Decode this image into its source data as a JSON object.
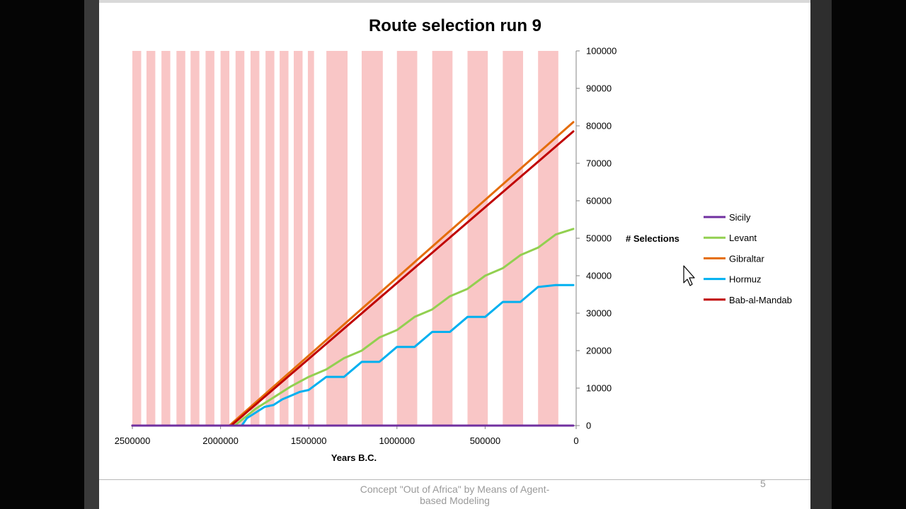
{
  "footer": {
    "text": "Concept \"Out of Africa\" by Means of Agent-\nbased Modeling",
    "slide_number": "5"
  },
  "colors": {
    "background": "#ffffff",
    "stripe": "#f9c6c6",
    "sicily": "#7030a0",
    "levant": "#92d050",
    "gibraltar": "#e46c0a",
    "hormuz": "#00b0f0",
    "bab_al_mandab": "#c00000"
  },
  "cursor": {
    "icon": "mouse-pointer-icon"
  },
  "chart_data": {
    "type": "line",
    "title": "Route selection run 9",
    "xlabel": "Years B.C.",
    "ylabel": "# Selections",
    "xlim": [
      2500000,
      0
    ],
    "x_reversed": true,
    "ylim": [
      0,
      100000
    ],
    "y_axis_side": "right",
    "x_ticks": [
      2500000,
      2000000,
      1500000,
      1000000,
      500000,
      0
    ],
    "y_ticks": [
      0,
      10000,
      20000,
      30000,
      40000,
      50000,
      60000,
      70000,
      80000,
      90000,
      100000
    ],
    "legend_position": "right",
    "grid": false,
    "background_bands": [
      [
        2500000,
        2450000
      ],
      [
        2420000,
        2370000
      ],
      [
        2335000,
        2285000
      ],
      [
        2250000,
        2200000
      ],
      [
        2170000,
        2120000
      ],
      [
        2085000,
        2035000
      ],
      [
        2000000,
        1950000
      ],
      [
        1915000,
        1865000
      ],
      [
        1830000,
        1780000
      ],
      [
        1745000,
        1695000
      ],
      [
        1665000,
        1615000
      ],
      [
        1585000,
        1535000
      ],
      [
        1505000,
        1470000
      ],
      [
        1400000,
        1280000
      ],
      [
        1200000,
        1080000
      ],
      [
        1000000,
        885000
      ],
      [
        800000,
        685000
      ],
      [
        600000,
        485000
      ],
      [
        400000,
        285000
      ],
      [
        200000,
        85000
      ]
    ],
    "series": [
      {
        "name": "Sicily",
        "color": "#7030a0",
        "x": [
          2500000,
          0
        ],
        "y": [
          0,
          0
        ]
      },
      {
        "name": "Levant",
        "color": "#92d050",
        "x": [
          2500000,
          1920000,
          1800000,
          1700000,
          1600000,
          1500000,
          1400000,
          1300000,
          1200000,
          1100000,
          1000000,
          900000,
          800000,
          700000,
          600000,
          500000,
          400000,
          300000,
          200000,
          100000,
          0
        ],
        "y": [
          0,
          0,
          4500,
          7500,
          10500,
          13000,
          15000,
          18000,
          20000,
          23500,
          25500,
          29000,
          31000,
          34500,
          36500,
          40000,
          42000,
          45500,
          47500,
          51000,
          52500
        ]
      },
      {
        "name": "Gibraltar",
        "color": "#e46c0a",
        "x": [
          2500000,
          1950000,
          0
        ],
        "y": [
          0,
          0,
          81000
        ]
      },
      {
        "name": "Hormuz",
        "color": "#00b0f0",
        "x": [
          2500000,
          1880000,
          1850000,
          1800000,
          1750000,
          1700000,
          1650000,
          1600000,
          1550000,
          1500000,
          1400000,
          1300000,
          1200000,
          1100000,
          1000000,
          900000,
          800000,
          700000,
          600000,
          500000,
          400000,
          300000,
          200000,
          100000,
          0
        ],
        "y": [
          0,
          0,
          2000,
          3500,
          5000,
          5500,
          7000,
          8000,
          9000,
          9500,
          13000,
          13000,
          17000,
          17000,
          21000,
          21000,
          25000,
          25000,
          29000,
          29000,
          33000,
          33000,
          37000,
          37500,
          37500
        ]
      },
      {
        "name": "Bab-al-Mandab",
        "color": "#c00000",
        "x": [
          2500000,
          1940000,
          0
        ],
        "y": [
          0,
          0,
          78500
        ]
      }
    ]
  }
}
